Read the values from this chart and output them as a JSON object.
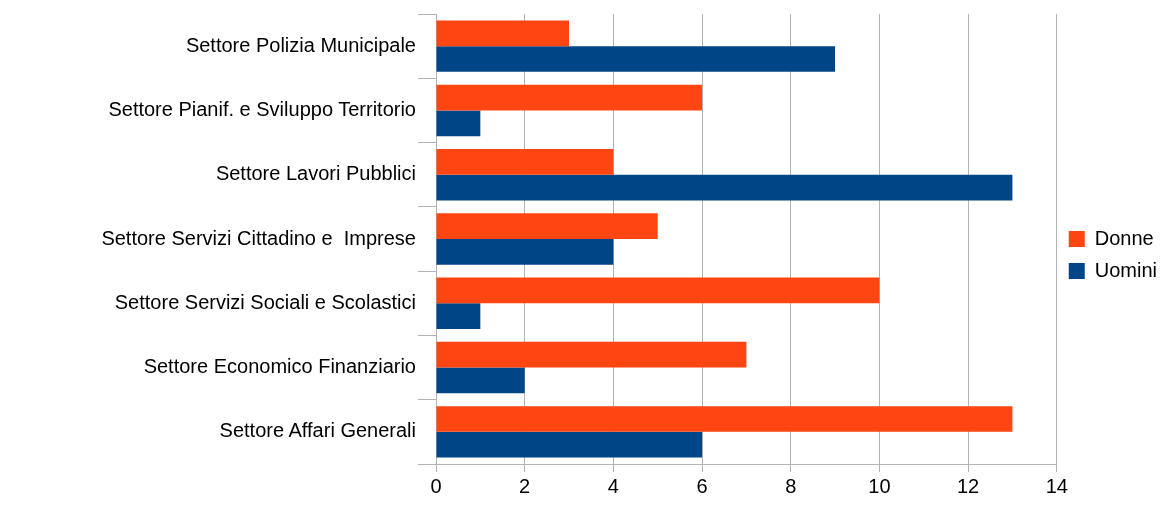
{
  "chart_data": {
    "type": "bar",
    "orientation": "horizontal",
    "categories": [
      "Settore Polizia Municipale",
      "Settore Pianif. e Sviluppo Territorio",
      "Settore Lavori Pubblici",
      "Settore Servizi Cittadino e  Imprese",
      "Settore Servizi Sociali e Scolastici",
      "Settore Economico Finanziario",
      "Settore Affari Generali"
    ],
    "series": [
      {
        "name": "Donne",
        "color": "#ff4511",
        "values": [
          3,
          6,
          4,
          5,
          10,
          7,
          13
        ]
      },
      {
        "name": "Uomini",
        "color": "#004586",
        "values": [
          9,
          1,
          13,
          4,
          1,
          2,
          6
        ]
      }
    ],
    "xlim": [
      0,
      14
    ],
    "xticks": [
      0,
      2,
      4,
      6,
      8,
      10,
      12,
      14
    ],
    "grid": "x",
    "legend": "right"
  }
}
